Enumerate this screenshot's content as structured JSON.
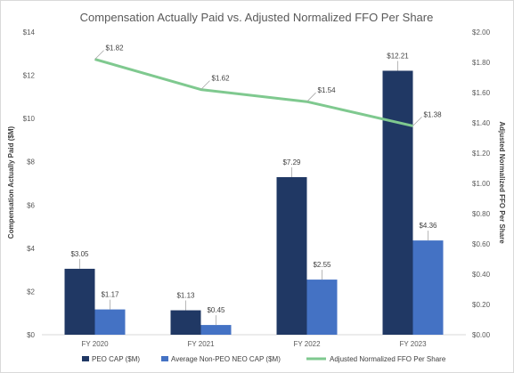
{
  "chart_data": {
    "type": "bar",
    "title": "Compensation Actually Paid vs. Adjusted Normalized FFO Per Share",
    "categories": [
      "FY 2020",
      "FY 2021",
      "FY 2022",
      "FY 2023"
    ],
    "series": [
      {
        "name": "PEO CAP ($M)",
        "type": "bar",
        "axis": "left",
        "color": "#203864",
        "values": [
          3.05,
          1.13,
          7.29,
          12.21
        ],
        "labels": [
          "$3.05",
          "$1.13",
          "$7.29",
          "$12.21"
        ]
      },
      {
        "name": "Average Non-PEO NEO CAP ($M)",
        "type": "bar",
        "axis": "left",
        "color": "#4472c4",
        "values": [
          1.17,
          0.45,
          2.55,
          4.36
        ],
        "labels": [
          "$1.17",
          "$0.45",
          "$2.55",
          "$4.36"
        ]
      },
      {
        "name": "Adjusted Normalized FFO Per Share",
        "type": "line",
        "axis": "right",
        "color": "#7fc98f",
        "values": [
          1.82,
          1.62,
          1.54,
          1.38
        ],
        "labels": [
          "$1.82",
          "$1.62",
          "$1.54",
          "$1.38"
        ]
      }
    ],
    "ylabel": "Compensation Actually Paid ($M)",
    "ylabel_right": "Adjusted Normalized FFO Per Share",
    "ylim": [
      0,
      14
    ],
    "ylim_right": [
      0,
      2.0
    ],
    "yticks": [
      "$0",
      "$2",
      "$4",
      "$6",
      "$8",
      "$10",
      "$12",
      "$14"
    ],
    "yticks_right": [
      "$0.00",
      "$0.20",
      "$0.40",
      "$0.60",
      "$0.80",
      "$1.00",
      "$1.20",
      "$1.40",
      "$1.60",
      "$1.80",
      "$2.00"
    ],
    "grid": false,
    "legend_position": "bottom"
  }
}
